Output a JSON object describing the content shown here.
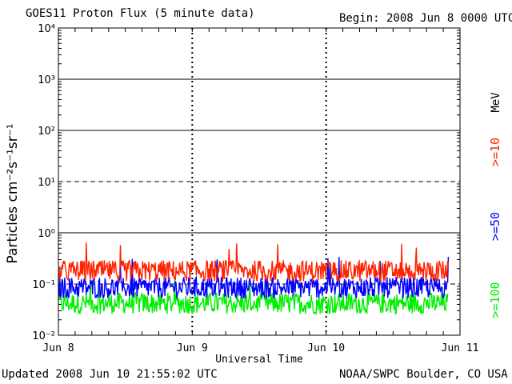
{
  "header": {
    "title": "GOES11 Proton Flux (5 minute data)",
    "begin": "Begin: 2008 Jun 8 0000 UTC"
  },
  "footer": {
    "updated": "Updated 2008 Jun 10 21:55:02 UTC",
    "credit": "NOAA/SWPC Boulder, CO USA"
  },
  "chart_data": {
    "type": "line",
    "title": "GOES11 Proton Flux (5 minute data)",
    "xlabel": "Universal Time",
    "ylabel": "Particles cm⁻²s⁻¹sr⁻¹",
    "y_scale": "log",
    "ylim": [
      0.01,
      10000
    ],
    "xlim_days": [
      0,
      3
    ],
    "x_ticks": [
      "Jun 8",
      "Jun 9",
      "Jun 10",
      "Jun 11"
    ],
    "y_ticks": [
      "10⁻²",
      "10⁻¹",
      "10⁰",
      "10¹",
      "10²",
      "10³",
      "10⁴"
    ],
    "unit_label": "MeV",
    "grid": true,
    "threshold_dashed_at": [
      10,
      0.1
    ],
    "legend_position": "right",
    "data_end_day": 2.913,
    "series": [
      {
        "name": ">=10",
        "color": "#ff2200",
        "typical": 0.18,
        "min": 0.08,
        "max": 0.65
      },
      {
        "name": ">=50",
        "color": "#0000ff",
        "typical": 0.085,
        "min": 0.045,
        "max": 0.35
      },
      {
        "name": ">=100",
        "color": "#00ee00",
        "typical": 0.042,
        "min": 0.021,
        "max": 0.14
      }
    ]
  }
}
